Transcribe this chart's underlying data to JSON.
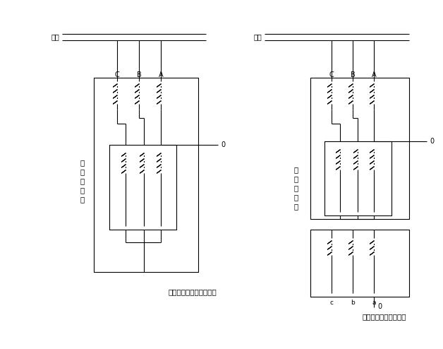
{
  "bg_color": "#ffffff",
  "line_color": "#000000",
  "lw": 0.8,
  "busbar_label": "母线",
  "left_label_chars": [
    "接",
    "地",
    "变",
    "压",
    "器"
  ],
  "right_label_chars": [
    "接",
    "地",
    "变",
    "压",
    "器"
  ],
  "left_caption": "不带二次绕组接地变压器",
  "right_caption": "带二次绕组接地变压器",
  "fig_w": 6.28,
  "fig_h": 4.94,
  "dpi": 100
}
